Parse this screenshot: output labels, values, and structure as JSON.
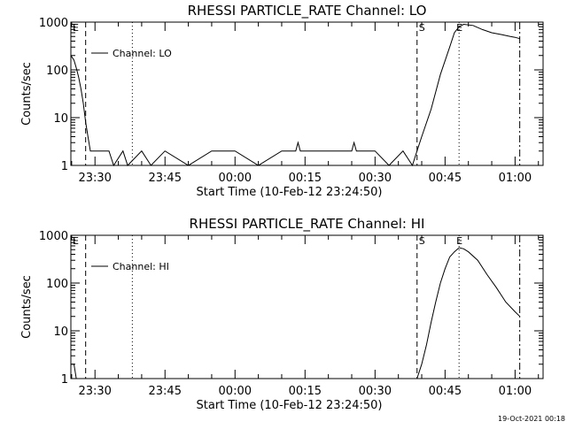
{
  "footer": {
    "timestamp": "19-Oct-2021 00:18"
  },
  "chart_data": [
    {
      "type": "line",
      "title": "RHESSI PARTICLE_RATE Channel: LO",
      "xlabel": "Start Time (10-Feb-12 23:24:50)",
      "ylabel": "Counts/sec",
      "y_scale": "log",
      "ylim": [
        1,
        1000
      ],
      "xlim": [
        "23:24:50",
        "01:06:00"
      ],
      "x_ticks": [
        "23:30",
        "23:45",
        "00:00",
        "00:15",
        "00:30",
        "00:45",
        "01:00"
      ],
      "y_ticks": [
        "1",
        "10",
        "100",
        "1000"
      ],
      "legend": "Channel: LO",
      "markers": {
        "left_label": "E",
        "s_label": "S",
        "e_label": "E",
        "dashed": [
          "23:28",
          "00:39"
        ],
        "dotted": [
          "23:38",
          "00:48"
        ],
        "dashdot": [
          "01:01"
        ]
      },
      "series": [
        {
          "x": [
            "23:24:50",
            "23:25:30",
            "23:26:00",
            "23:26:30",
            "23:27:00",
            "23:27:30",
            "23:28:00",
            "23:28:30",
            "23:29:00",
            "23:29:30",
            "23:30:00",
            "23:33:00",
            "23:34:00",
            "23:36:00",
            "23:37:00",
            "23:40:00",
            "23:42:00",
            "23:45:00",
            "23:50:00",
            "23:55:00",
            "00:00:00",
            "00:05:00",
            "00:10:00",
            "00:13:00",
            "00:13:30",
            "00:14:00",
            "00:20:00",
            "00:25:00",
            "00:25:30",
            "00:26:00",
            "00:30:00",
            "00:33:00",
            "00:36:00",
            "00:38:00",
            "00:39:00",
            "00:40:00",
            "00:42:00",
            "00:44:00",
            "00:46:00",
            "00:47:00",
            "00:48:00",
            "00:49:00",
            "00:51:00",
            "00:53:00",
            "00:55:00",
            "00:57:00",
            "00:59:00",
            "01:00:00",
            "01:01:00"
          ],
          "y": [
            200,
            160,
            110,
            70,
            40,
            20,
            8,
            4,
            2,
            2,
            2,
            2,
            1,
            2,
            1,
            2,
            1,
            2,
            1,
            2,
            2,
            1,
            2,
            2,
            3,
            2,
            2,
            2,
            3,
            2,
            2,
            1,
            2,
            1,
            2,
            4,
            15,
            80,
            300,
            600,
            800,
            900,
            850,
            700,
            600,
            550,
            500,
            480,
            450
          ]
        }
      ]
    },
    {
      "type": "line",
      "title": "RHESSI PARTICLE_RATE Channel: HI",
      "xlabel": "Start Time (10-Feb-12 23:24:50)",
      "ylabel": "Counts/sec",
      "y_scale": "log",
      "ylim": [
        1,
        1000
      ],
      "xlim": [
        "23:24:50",
        "01:06:00"
      ],
      "x_ticks": [
        "23:30",
        "23:45",
        "00:00",
        "00:15",
        "00:30",
        "00:45",
        "01:00"
      ],
      "y_ticks": [
        "1",
        "10",
        "100",
        "1000"
      ],
      "legend": "Channel: HI",
      "markers": {
        "left_label": "E",
        "s_label": "S",
        "e_label": "E",
        "dashed": [
          "23:28",
          "00:39"
        ],
        "dotted": [
          "23:38",
          "00:48"
        ],
        "dashdot": [
          "01:01"
        ]
      },
      "series": [
        {
          "x": [
            "23:24:50",
            "23:25:30",
            "23:26:00",
            "23:26:30",
            "00:39:00",
            "00:40:00",
            "00:41:00",
            "00:42:00",
            "00:43:00",
            "00:44:00",
            "00:45:00",
            "00:46:00",
            "00:47:00",
            "00:48:00",
            "00:49:00",
            "00:50:00",
            "00:52:00",
            "00:54:00",
            "00:56:00",
            "00:58:00",
            "01:00:00",
            "01:01:00"
          ],
          "y": [
            2,
            2,
            1,
            1,
            1,
            2,
            5,
            15,
            40,
            100,
            200,
            350,
            450,
            550,
            520,
            450,
            300,
            150,
            80,
            40,
            25,
            20
          ]
        }
      ]
    }
  ]
}
